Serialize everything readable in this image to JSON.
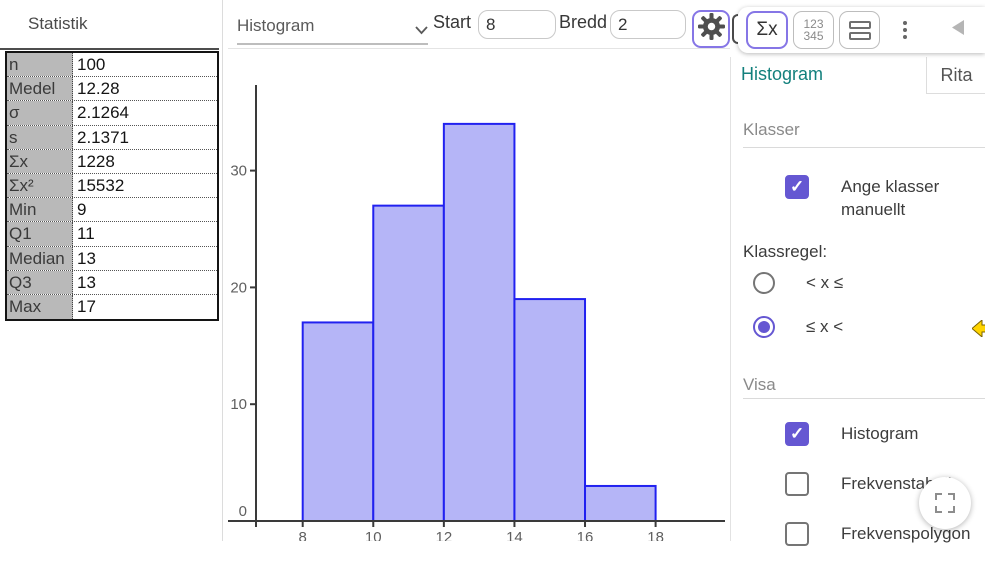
{
  "left_panel": {
    "title": "Statistik",
    "stats": [
      {
        "label": "n",
        "value": "100"
      },
      {
        "label": "Medel",
        "value": "12.28"
      },
      {
        "label": "σ",
        "value": "2.1264"
      },
      {
        "label": "s",
        "value": "2.1371"
      },
      {
        "label": "Σx",
        "value": "1228"
      },
      {
        "label": "Σx²",
        "value": "15532"
      },
      {
        "label": "Min",
        "value": "9"
      },
      {
        "label": "Q1",
        "value": "11"
      },
      {
        "label": "Median",
        "value": "13"
      },
      {
        "label": "Q3",
        "value": "13"
      },
      {
        "label": "Max",
        "value": "17"
      }
    ]
  },
  "toolbar": {
    "plot_type_value": "Histogram",
    "start_label": "Start",
    "start_value": "8",
    "width_label": "Bredd",
    "width_value": "2",
    "sum_button_label": "Σx",
    "numbers_button_line1": "123",
    "numbers_button_line2": "345",
    "icons": [
      "chevron-down-icon",
      "gear-icon",
      "sum-stats-icon",
      "numbers-icon",
      "split-view-icon",
      "kebab-menu-icon",
      "collapse-left-icon"
    ]
  },
  "right_panel": {
    "tab_active": "Histogram",
    "tab_inactive": "Rita",
    "klasser_heading": "Klasser",
    "manual_classes_label": "Ange klasser manuellt",
    "manual_classes_checked": true,
    "klassregel_label": "Klassregel:",
    "rule_options": [
      {
        "label": "< x ≤",
        "selected": false
      },
      {
        "label": "≤ x <",
        "selected": true
      }
    ],
    "visa_heading": "Visa",
    "visa_items": [
      {
        "label": "Histogram",
        "checked": true
      },
      {
        "label": "Frekvenstabell",
        "checked": false
      },
      {
        "label": "Frekvenspolygon",
        "checked": false
      }
    ],
    "accent_color": "#6557d2",
    "active_tab_color": "#13807d"
  },
  "chart_data": {
    "type": "bar",
    "title": "",
    "xlabel": "",
    "ylabel": "",
    "bin_start": 8,
    "bin_width": 2,
    "categories": [
      "8–10",
      "10–12",
      "12–14",
      "14–16",
      "16–18"
    ],
    "values": [
      17,
      27,
      34,
      19,
      3
    ],
    "xticks": [
      8,
      10,
      12,
      14,
      16,
      18
    ],
    "yticks": [
      0,
      10,
      20,
      30
    ],
    "xlim": [
      5.9,
      19.5
    ],
    "ylim": [
      0,
      37.3
    ],
    "grid": false,
    "legend": false,
    "bar_fill": "#b5b5f7",
    "bar_stroke": "#2121f0"
  }
}
